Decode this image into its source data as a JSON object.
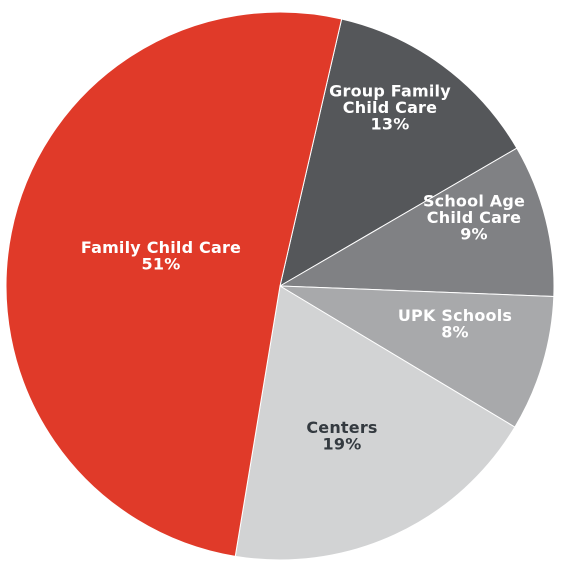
{
  "chart_data": {
    "type": "pie",
    "title": "",
    "slices": [
      {
        "label_lines": [
          "Group Family",
          "Child Care"
        ],
        "value": 13,
        "value_text": "13%",
        "color": "#55575a",
        "label_color": "light"
      },
      {
        "label_lines": [
          "School Age",
          "Child Care"
        ],
        "value": 9,
        "value_text": "9%",
        "color": "#808184",
        "label_color": "light"
      },
      {
        "label_lines": [
          "UPK Schools"
        ],
        "value": 8,
        "value_text": "8%",
        "color": "#a8a9ab",
        "label_color": "light"
      },
      {
        "label_lines": [
          "Centers"
        ],
        "value": 19,
        "value_text": "19%",
        "color": "#d2d3d4",
        "label_color": "dark"
      },
      {
        "label_lines": [
          "Family Child Care"
        ],
        "value": 51,
        "value_text": "51%",
        "color": "#e03a29",
        "label_color": "light"
      }
    ],
    "legend": "none",
    "start_angle_deg": 13,
    "direction": "clockwise"
  }
}
